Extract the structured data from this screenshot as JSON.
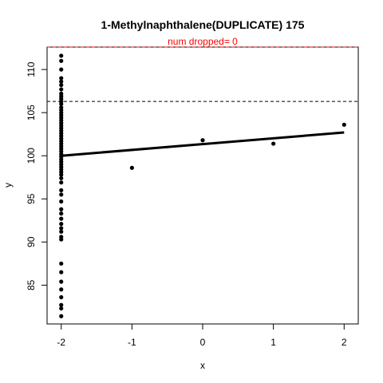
{
  "chart_data": {
    "type": "scatter",
    "title": "1-Methylnaphthalene(DUPLICATE) 175",
    "subtitle": "num dropped= 0",
    "xlabel": "x",
    "ylabel": "y",
    "xlim": [
      -2.2,
      2.2
    ],
    "ylim": [
      80.5,
      112.6
    ],
    "x_ticks": [
      -2,
      -1,
      0,
      1,
      2
    ],
    "y_ticks": [
      85,
      90,
      95,
      100,
      105,
      110
    ],
    "grid": false,
    "points": [
      {
        "x": -2,
        "y": 111.6
      },
      {
        "x": -2,
        "y": 111.0
      },
      {
        "x": -2,
        "y": 110.0
      },
      {
        "x": -2,
        "y": 109.0
      },
      {
        "x": -2,
        "y": 108.6
      },
      {
        "x": -2,
        "y": 108.2
      },
      {
        "x": -2,
        "y": 107.7
      },
      {
        "x": -2,
        "y": 107.2
      },
      {
        "x": -2,
        "y": 106.9
      },
      {
        "x": -2,
        "y": 106.6
      },
      {
        "x": -2,
        "y": 106.3
      },
      {
        "x": -2,
        "y": 106.0
      },
      {
        "x": -2,
        "y": 105.6
      },
      {
        "x": -2,
        "y": 105.3
      },
      {
        "x": -2,
        "y": 105.0
      },
      {
        "x": -2,
        "y": 104.7
      },
      {
        "x": -2,
        "y": 104.4
      },
      {
        "x": -2,
        "y": 104.1
      },
      {
        "x": -2,
        "y": 103.8
      },
      {
        "x": -2,
        "y": 103.5
      },
      {
        "x": -2,
        "y": 103.2
      },
      {
        "x": -2,
        "y": 102.9
      },
      {
        "x": -2,
        "y": 102.6
      },
      {
        "x": -2,
        "y": 102.3
      },
      {
        "x": -2,
        "y": 102.0
      },
      {
        "x": -2,
        "y": 101.7
      },
      {
        "x": -2,
        "y": 101.4
      },
      {
        "x": -2,
        "y": 101.1
      },
      {
        "x": -2,
        "y": 100.8
      },
      {
        "x": -2,
        "y": 100.5
      },
      {
        "x": -2,
        "y": 100.2
      },
      {
        "x": -2,
        "y": 99.9
      },
      {
        "x": -2,
        "y": 99.6
      },
      {
        "x": -2,
        "y": 99.3
      },
      {
        "x": -2,
        "y": 99.0
      },
      {
        "x": -2,
        "y": 98.7
      },
      {
        "x": -2,
        "y": 98.4
      },
      {
        "x": -2,
        "y": 98.1
      },
      {
        "x": -2,
        "y": 97.8
      },
      {
        "x": -2,
        "y": 97.4
      },
      {
        "x": -2,
        "y": 96.9
      },
      {
        "x": -2,
        "y": 96.0
      },
      {
        "x": -2,
        "y": 95.5
      },
      {
        "x": -2,
        "y": 94.7
      },
      {
        "x": -2,
        "y": 93.8
      },
      {
        "x": -2,
        "y": 93.3
      },
      {
        "x": -2,
        "y": 92.7
      },
      {
        "x": -2,
        "y": 92.1
      },
      {
        "x": -2,
        "y": 91.6
      },
      {
        "x": -2,
        "y": 91.2
      },
      {
        "x": -2,
        "y": 90.6
      },
      {
        "x": -2,
        "y": 90.3
      },
      {
        "x": -2,
        "y": 87.5
      },
      {
        "x": -2,
        "y": 86.5
      },
      {
        "x": -2,
        "y": 85.4
      },
      {
        "x": -2,
        "y": 84.5
      },
      {
        "x": -2,
        "y": 83.6
      },
      {
        "x": -2,
        "y": 82.7
      },
      {
        "x": -2,
        "y": 82.3
      },
      {
        "x": -2,
        "y": 81.4
      },
      {
        "x": -1,
        "y": 98.6
      },
      {
        "x": 0,
        "y": 101.8
      },
      {
        "x": 1,
        "y": 101.4
      },
      {
        "x": 2,
        "y": 103.6
      }
    ],
    "fit_line": {
      "x": [
        -2,
        2
      ],
      "y": [
        100.0,
        102.7
      ]
    },
    "reference_lines": [
      {
        "y": 112.6,
        "style": "dashed",
        "color": "#ff0000"
      },
      {
        "y": 106.3,
        "style": "dashed",
        "color": "#000000"
      }
    ],
    "colors": {
      "points": "#000000",
      "fit": "#000000",
      "subtitle": "#ff0000"
    }
  }
}
